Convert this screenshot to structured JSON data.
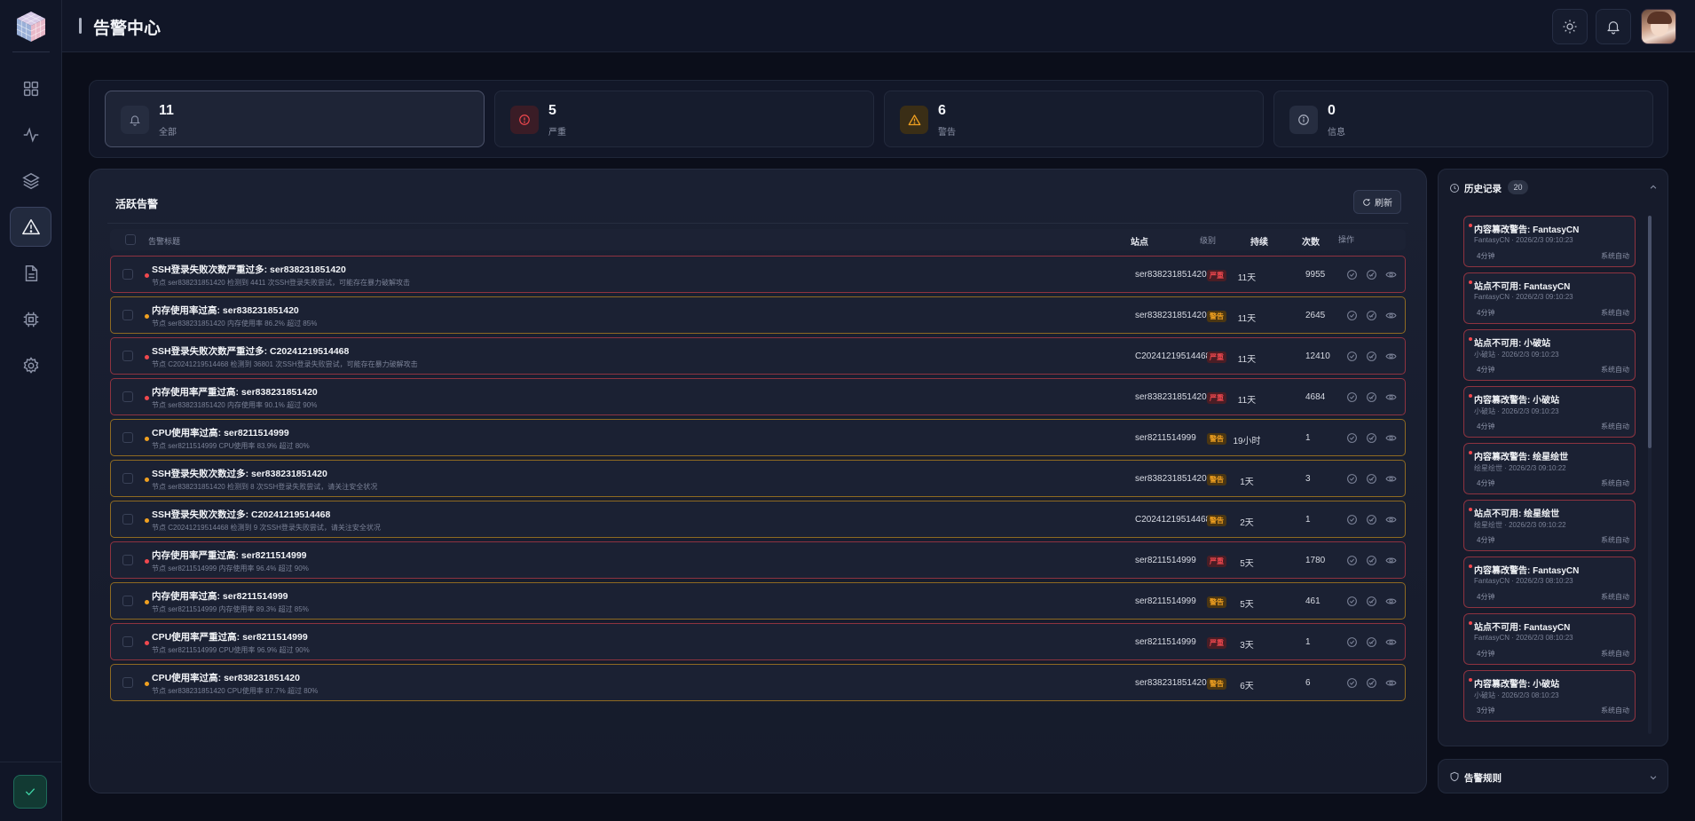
{
  "header": {
    "title": "告警中心"
  },
  "stats": [
    {
      "count": "11",
      "label": "全部",
      "icon": "bell-icon",
      "color": "#8c93a8"
    },
    {
      "count": "5",
      "label": "严重",
      "icon": "alert-circle-icon",
      "color": "#f0484e"
    },
    {
      "count": "6",
      "label": "警告",
      "icon": "warning-triangle-icon",
      "color": "#f0a020"
    },
    {
      "count": "0",
      "label": "信息",
      "icon": "info-icon",
      "color": "#8c93a8"
    }
  ],
  "active_alerts": {
    "title": "活跃告警",
    "refresh_label": "刷新",
    "columns": {
      "title": "告警标题",
      "site": "站点",
      "level": "级别",
      "duration": "持续",
      "count": "次数",
      "actions": "操作"
    },
    "rows": [
      {
        "title": "SSH登录失败次数严重过多: ser838231851420",
        "desc": "节点 ser838231851420 检测到 4411 次SSH登录失败尝试，可能存在暴力破解攻击",
        "site": "ser838231851420",
        "level": "critical",
        "badge": "严重",
        "duration": "11天",
        "count": "9955"
      },
      {
        "title": "内存使用率过高: ser838231851420",
        "desc": "节点 ser838231851420 内存使用率 86.2% 超过 85%",
        "site": "ser838231851420",
        "level": "warning",
        "badge": "警告",
        "duration": "11天",
        "count": "2645"
      },
      {
        "title": "SSH登录失败次数严重过多: C20241219514468",
        "desc": "节点 C20241219514468 检测到 36801 次SSH登录失败尝试，可能存在暴力破解攻击",
        "site": "C20241219514468",
        "level": "critical",
        "badge": "严重",
        "duration": "11天",
        "count": "12410"
      },
      {
        "title": "内存使用率严重过高: ser838231851420",
        "desc": "节点 ser838231851420 内存使用率 90.1% 超过 90%",
        "site": "ser838231851420",
        "level": "critical",
        "badge": "严重",
        "duration": "11天",
        "count": "4684"
      },
      {
        "title": "CPU使用率过高: ser8211514999",
        "desc": "节点 ser8211514999 CPU使用率 83.9% 超过 80%",
        "site": "ser8211514999",
        "level": "warning",
        "badge": "警告",
        "duration": "19小时",
        "count": "1"
      },
      {
        "title": "SSH登录失败次数过多: ser838231851420",
        "desc": "节点 ser838231851420 检测到 8 次SSH登录失败尝试，请关注安全状况",
        "site": "ser838231851420",
        "level": "warning",
        "badge": "警告",
        "duration": "1天",
        "count": "3"
      },
      {
        "title": "SSH登录失败次数过多: C20241219514468",
        "desc": "节点 C20241219514468 检测到 9 次SSH登录失败尝试，请关注安全状况",
        "site": "C20241219514468",
        "level": "warning",
        "badge": "警告",
        "duration": "2天",
        "count": "1"
      },
      {
        "title": "内存使用率严重过高: ser8211514999",
        "desc": "节点 ser8211514999 内存使用率 96.4% 超过 90%",
        "site": "ser8211514999",
        "level": "critical",
        "badge": "严重",
        "duration": "5天",
        "count": "1780"
      },
      {
        "title": "内存使用率过高: ser8211514999",
        "desc": "节点 ser8211514999 内存使用率 89.3% 超过 85%",
        "site": "ser8211514999",
        "level": "warning",
        "badge": "警告",
        "duration": "5天",
        "count": "461"
      },
      {
        "title": "CPU使用率严重过高: ser8211514999",
        "desc": "节点 ser8211514999 CPU使用率 96.9% 超过 90%",
        "site": "ser8211514999",
        "level": "critical",
        "badge": "严重",
        "duration": "3天",
        "count": "1"
      },
      {
        "title": "CPU使用率过高: ser838231851420",
        "desc": "节点 ser838231851420 CPU使用率 87.7% 超过 80%",
        "site": "ser838231851420",
        "level": "warning",
        "badge": "警告",
        "duration": "6天",
        "count": "6"
      }
    ]
  },
  "history": {
    "title": "历史记录",
    "count": "20",
    "items": [
      {
        "title": "内容篡改警告: FantasyCN",
        "sub": "FantasyCN · 2026/2/3 09:10:23",
        "duration": "4分钟",
        "source": "系统自动"
      },
      {
        "title": "站点不可用: FantasyCN",
        "sub": "FantasyCN · 2026/2/3 09:10:23",
        "duration": "4分钟",
        "source": "系统自动"
      },
      {
        "title": "站点不可用: 小破站",
        "sub": "小破站 · 2026/2/3 09:10:23",
        "duration": "4分钟",
        "source": "系统自动"
      },
      {
        "title": "内容篡改警告: 小破站",
        "sub": "小破站 · 2026/2/3 09:10:23",
        "duration": "4分钟",
        "source": "系统自动"
      },
      {
        "title": "内容篡改警告: 绘星绘世",
        "sub": "绘星绘世 · 2026/2/3 09:10:22",
        "duration": "4分钟",
        "source": "系统自动"
      },
      {
        "title": "站点不可用: 绘星绘世",
        "sub": "绘星绘世 · 2026/2/3 09:10:22",
        "duration": "4分钟",
        "source": "系统自动"
      },
      {
        "title": "内容篡改警告: FantasyCN",
        "sub": "FantasyCN · 2026/2/3 08:10:23",
        "duration": "4分钟",
        "source": "系统自动"
      },
      {
        "title": "站点不可用: FantasyCN",
        "sub": "FantasyCN · 2026/2/3 08:10:23",
        "duration": "4分钟",
        "source": "系统自动"
      },
      {
        "title": "内容篡改警告: 小破站",
        "sub": "小破站 · 2026/2/3 08:10:23",
        "duration": "3分钟",
        "source": "系统自动"
      }
    ]
  },
  "rules": {
    "title": "告警规则"
  }
}
